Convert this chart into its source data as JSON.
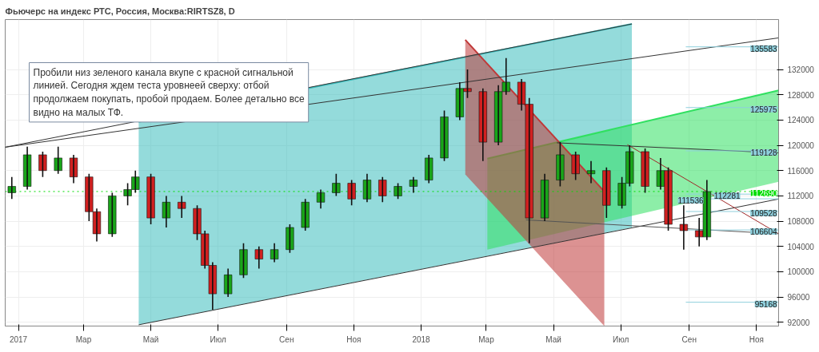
{
  "chart_data": {
    "type": "candlestick",
    "title": "Фьючерс на индекс РТС, Россия, Москва:RIRTSZ8, D",
    "annotations": [
      "Пробили низ зеленого канала вкупе с красной сигнальной линией. Сегодня ждем теста уровнеей сверху: отбой продолжаем покупать, пробой продаем. Более детально все видно на малых ТФ."
    ],
    "x": [
      "2016-12-26",
      "2017-01-09",
      "2017-01-23",
      "2017-02-06",
      "2017-02-20",
      "2017-03-06",
      "2017-03-13",
      "2017-03-27",
      "2017-04-10",
      "2017-04-17",
      "2017-05-01",
      "2017-05-15",
      "2017-05-29",
      "2017-06-12",
      "2017-06-19",
      "2017-06-26",
      "2017-07-10",
      "2017-07-24",
      "2017-08-07",
      "2017-08-21",
      "2017-09-04",
      "2017-09-18",
      "2017-10-02",
      "2017-10-16",
      "2017-10-30",
      "2017-11-13",
      "2017-11-27",
      "2017-12-11",
      "2017-12-25",
      "2018-01-08",
      "2018-01-22",
      "2018-02-05",
      "2018-02-12",
      "2018-02-26",
      "2018-03-12",
      "2018-03-19",
      "2018-04-02",
      "2018-04-09",
      "2018-04-23",
      "2018-05-07",
      "2018-05-21",
      "2018-06-04",
      "2018-06-18",
      "2018-07-02",
      "2018-07-09",
      "2018-07-23",
      "2018-08-06",
      "2018-08-13",
      "2018-08-27",
      "2018-09-10",
      "2018-09-17"
    ],
    "ohlc": [
      [
        112500,
        115000,
        111500,
        113500
      ],
      [
        113500,
        119800,
        113000,
        118500
      ],
      [
        118500,
        119000,
        115000,
        116000
      ],
      [
        116000,
        119800,
        115500,
        118000
      ],
      [
        118000,
        118500,
        114000,
        115000
      ],
      [
        115000,
        115500,
        108000,
        109500
      ],
      [
        109500,
        110000,
        104800,
        106000
      ],
      [
        106000,
        112500,
        105500,
        112000
      ],
      [
        112000,
        114000,
        110500,
        113000
      ],
      [
        113000,
        116000,
        112500,
        115000
      ],
      [
        115000,
        115500,
        107500,
        108500
      ],
      [
        108500,
        112000,
        107000,
        111000
      ],
      [
        111000,
        112000,
        108500,
        110000
      ],
      [
        110000,
        110500,
        105000,
        106000
      ],
      [
        106000,
        106500,
        100500,
        101000
      ],
      [
        101000,
        101500,
        94000,
        96500
      ],
      [
        96500,
        100500,
        96000,
        99500
      ],
      [
        99500,
        104500,
        99000,
        103500
      ],
      [
        103500,
        104000,
        100500,
        102000
      ],
      [
        102000,
        104500,
        101500,
        103500
      ],
      [
        103500,
        107500,
        103000,
        107000
      ],
      [
        107000,
        111500,
        106500,
        111000
      ],
      [
        111000,
        113000,
        110000,
        112500
      ],
      [
        112500,
        115500,
        112000,
        114000
      ],
      [
        114000,
        114500,
        110500,
        111500
      ],
      [
        111500,
        115500,
        111000,
        114500
      ],
      [
        114500,
        115000,
        111000,
        112000
      ],
      [
        112000,
        114000,
        111500,
        113500
      ],
      [
        113500,
        115000,
        112500,
        114500
      ],
      [
        114500,
        118500,
        114000,
        118000
      ],
      [
        118000,
        125500,
        117500,
        124500
      ],
      [
        124500,
        130000,
        124000,
        129000
      ],
      [
        129000,
        132000,
        127500,
        128500
      ],
      [
        128500,
        129000,
        117500,
        120500
      ],
      [
        120500,
        129500,
        120000,
        128500
      ],
      [
        128500,
        133800,
        128000,
        130000
      ],
      [
        130000,
        130500,
        125500,
        126500
      ],
      [
        126500,
        127500,
        104500,
        108500
      ],
      [
        108500,
        115500,
        108000,
        114500
      ],
      [
        114500,
        120500,
        113500,
        118500
      ],
      [
        118500,
        119000,
        114500,
        115500
      ],
      [
        115500,
        117500,
        114000,
        116000
      ],
      [
        116000,
        116500,
        108500,
        110500
      ],
      [
        110500,
        115000,
        110000,
        114000
      ],
      [
        114000,
        120000,
        113500,
        119000
      ],
      [
        119000,
        119500,
        112500,
        113500
      ],
      [
        113500,
        118000,
        113000,
        116000
      ],
      [
        116000,
        116500,
        106500,
        107500
      ],
      [
        107500,
        110500,
        103500,
        106500
      ],
      [
        106500,
        108500,
        104000,
        105500
      ],
      [
        105500,
        114500,
        105000,
        112690
      ]
    ],
    "colors": [
      "#19a519",
      "#19a519",
      "#d12020",
      "#19a519",
      "#d12020",
      "#d12020",
      "#d12020",
      "#19a519",
      "#19a519",
      "#19a519",
      "#d12020",
      "#19a519",
      "#d12020",
      "#d12020",
      "#d12020",
      "#d12020",
      "#19a519",
      "#19a519",
      "#d12020",
      "#19a519",
      "#19a519",
      "#19a519",
      "#19a519",
      "#19a519",
      "#d12020",
      "#19a519",
      "#d12020",
      "#19a519",
      "#19a519",
      "#19a519",
      "#19a519",
      "#19a519",
      "#d12020",
      "#d12020",
      "#19a519",
      "#19a519",
      "#d12020",
      "#d12020",
      "#19a519",
      "#19a519",
      "#d12020",
      "#19a519",
      "#d12020",
      "#19a519",
      "#19a519",
      "#d12020",
      "#19a519",
      "#d12020",
      "#d12020",
      "#d12020",
      "#19a519"
    ],
    "series": [
      {
        "type": "line",
        "color": "#3cbdbd",
        "x": [
          "2017-04-20",
          "2018-07-11"
        ],
        "values": [
          123700,
          139200
        ],
        "lower": [
          91600,
          107000
        ],
        "upper": [
          123700,
          139200
        ]
      },
      {
        "type": "line",
        "color": "#30e060",
        "x": [
          "2018-03-02",
          "2018-11-21"
        ],
        "values": [
          117900,
          128700
        ],
        "lower": [
          103500,
          114240
        ],
        "upper": [
          117900,
          128700
        ]
      },
      {
        "type": "line",
        "color": "#c03838",
        "x": [
          "2018-02-10",
          "2018-06-16"
        ],
        "values": [
          136700,
          112700
        ],
        "lower": [
          115400,
          91400
        ],
        "upper": [
          136700,
          112700
        ]
      },
      {
        "type": "line",
        "color": "#333333",
        "x": [
          "2016-12-20",
          "2018-07-11"
        ],
        "values": [
          119700,
          139200
        ]
      },
      {
        "type": "line",
        "color": "#333333",
        "x": [
          "2016-12-20",
          "2018-11-21"
        ],
        "values": [
          119700,
          137000
        ]
      },
      {
        "type": "line",
        "color": "#333333",
        "x": [
          "2017-04-20",
          "2018-11-21"
        ],
        "values": [
          91600,
          111500
        ]
      },
      {
        "type": "line",
        "color": "#333333",
        "x": [
          "2018-05-04",
          "2018-11-21"
        ],
        "values": [
          120400,
          118800
        ]
      },
      {
        "type": "line",
        "color": "#555555",
        "x": [
          "2018-04-06",
          "2018-11-21"
        ],
        "values": [
          108200,
          106000
        ]
      },
      {
        "type": "line",
        "color": "#a02828",
        "x": [
          "2018-07-07",
          "2018-11-21"
        ],
        "values": [
          120100,
          106000
        ]
      }
    ],
    "ref_lines": [
      {
        "axis": "y",
        "value": 135583,
        "label": "135583",
        "color": "#8ecfdc"
      },
      {
        "axis": "y",
        "value": 125975,
        "label": "125975",
        "color": "#8ecfdc"
      },
      {
        "axis": "y",
        "value": 119128,
        "label": "119128",
        "color": "#8ecfdc"
      },
      {
        "axis": "y",
        "value": 112690,
        "label": "112690",
        "color": "#00dd00",
        "line_style": "dotted"
      },
      {
        "axis": "y",
        "value": 112281,
        "label": "112281",
        "color": "#8ecfdc"
      },
      {
        "axis": "y",
        "value": 111536,
        "label": "111536",
        "color": "#8ecfdc"
      },
      {
        "axis": "y",
        "value": 109528,
        "label": "109528",
        "color": "#8ecfdc"
      },
      {
        "axis": "y",
        "value": 106604,
        "label": "106604",
        "color": "#8ecfdc"
      },
      {
        "axis": "y",
        "value": 95168,
        "label": "95168",
        "color": "#8ecfdc"
      }
    ],
    "xlim": [
      "2016-12-20",
      "2018-11-21"
    ],
    "xticks": [
      {
        "value": "2017-01-01",
        "label": "2017"
      },
      {
        "value": "2017-03-01",
        "label": "Мар"
      },
      {
        "value": "2017-05-01",
        "label": "Май"
      },
      {
        "value": "2017-07-01",
        "label": "Июл"
      },
      {
        "value": "2017-09-01",
        "label": "Сен"
      },
      {
        "value": "2017-11-01",
        "label": "Ноя"
      },
      {
        "value": "2018-01-01",
        "label": "2018"
      },
      {
        "value": "2018-03-01",
        "label": "Мар"
      },
      {
        "value": "2018-05-01",
        "label": "Май"
      },
      {
        "value": "2018-07-01",
        "label": "Июл"
      },
      {
        "value": "2018-09-01",
        "label": "Сен"
      },
      {
        "value": "2018-11-01",
        "label": "Ноя"
      }
    ],
    "ylim": [
      91400,
      139900
    ],
    "yticks": [
      92000,
      96000,
      100000,
      104000,
      108000,
      112000,
      116000,
      120000,
      124000,
      128000,
      132000
    ],
    "grid": true
  }
}
